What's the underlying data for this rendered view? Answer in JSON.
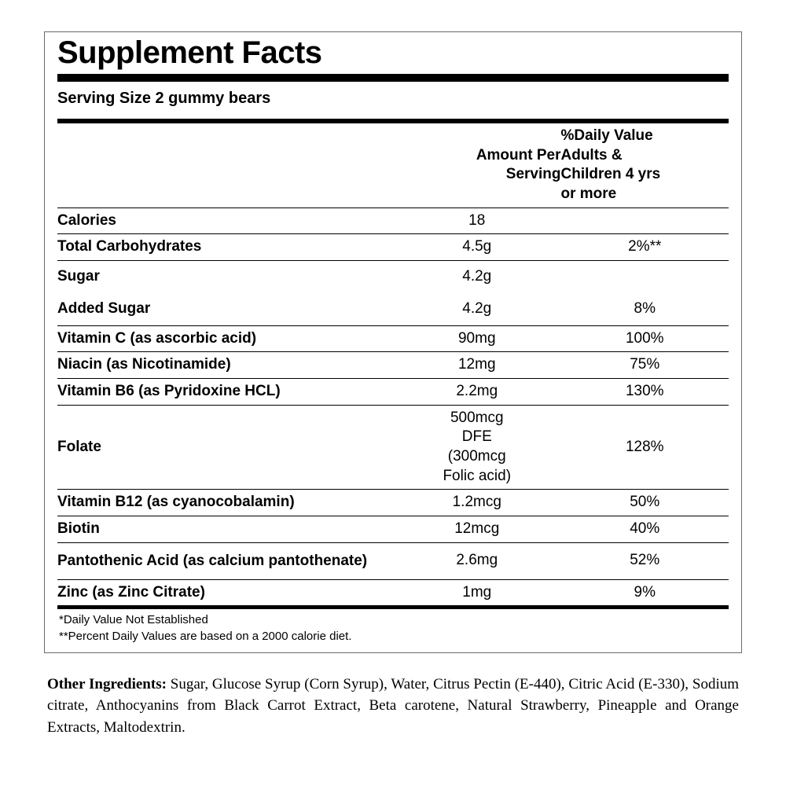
{
  "panel": {
    "title": "Supplement Facts",
    "serving_line": "Serving Size 2 gummy bears",
    "header": {
      "amount_col": "Amount Per Serving",
      "dv_col": "%Daily Value Adults & Children 4 yrs or more"
    },
    "rows": [
      {
        "name": "Calories",
        "amount": "18",
        "dv": "",
        "bold": true,
        "indent": 0,
        "rule": true
      },
      {
        "name": "Total Carbohydrates",
        "amount": "4.5g",
        "dv": "2%**",
        "bold": true,
        "indent": 0,
        "rule": true
      },
      {
        "name": "Sugar",
        "amount": "4.2g",
        "dv": "",
        "bold": true,
        "indent": 1,
        "rule": false,
        "pad": true
      },
      {
        "name": "Added Sugar",
        "amount": "4.2g",
        "dv": "8%",
        "bold": true,
        "indent": 2,
        "rule": true,
        "pad": true
      },
      {
        "name": "Vitamin C (as ascorbic acid)",
        "amount": "90mg",
        "dv": "100%",
        "bold": true,
        "indent": 0,
        "rule": true
      },
      {
        "name": "Niacin (as Nicotinamide)",
        "amount": "12mg",
        "dv": "75%",
        "bold": true,
        "indent": 0,
        "rule": true
      },
      {
        "name": "Vitamin B6 (as Pyridoxine HCL)",
        "amount": "2.2mg",
        "dv": "130%",
        "bold": true,
        "indent": 0,
        "rule": true
      },
      {
        "name": "Folate",
        "amount": "500mcg DFE (300mcg Folic acid)",
        "dv": "128%",
        "bold": true,
        "indent": 0,
        "rule": true,
        "multiline": true
      },
      {
        "name": "Vitamin B12 (as cyanocobalamin)",
        "amount": "1.2mcg",
        "dv": "50%",
        "bold": true,
        "indent": 1,
        "rule": true,
        "nm_nowrap": true
      },
      {
        "name": "Biotin",
        "amount": "12mcg",
        "dv": "40%",
        "bold": true,
        "indent": 0,
        "rule": true
      },
      {
        "name": "Pantothenic Acid (as calcium pantothenate)",
        "amount": "2.6mg",
        "dv": "52%",
        "bold": true,
        "indent": 0,
        "rule": true,
        "multiline_name": true
      },
      {
        "name": "Zinc (as Zinc Citrate)",
        "amount": "1mg",
        "dv": "9%",
        "bold": true,
        "indent": 0,
        "rule": false
      }
    ],
    "footnotes": [
      "*Daily Value Not Established",
      "**Percent Daily Values are based on a 2000 calorie diet."
    ]
  },
  "other_ingredients": {
    "label": "Other Ingredients:",
    "text": " Sugar, Glucose Syrup (Corn Syrup), Water, Citrus Pectin (E-440), Citric Acid (E-330), Sodium citrate, Anthocyanins from Black Carrot Extract, Beta carotene, Natural Strawberry, Pineapple and  Orange Extracts, Maltodextrin."
  },
  "style": {
    "background": "#ffffff",
    "border_color": "#6b6b6b",
    "rule_color": "#000000",
    "title_fontsize": 40,
    "body_fontsize": 19,
    "footnote_fontsize": 15,
    "other_fontsize": 19
  }
}
